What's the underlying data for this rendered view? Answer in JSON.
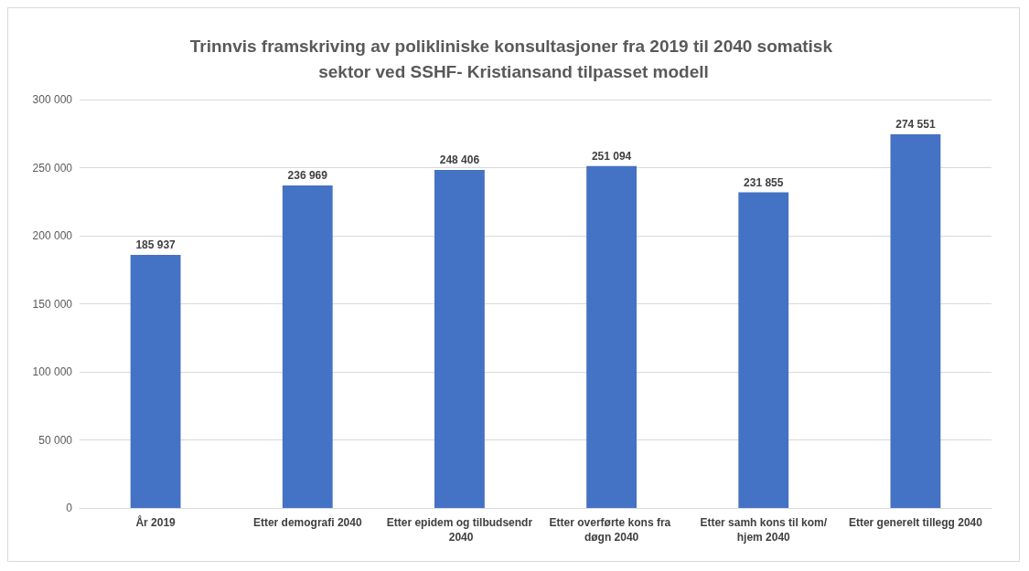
{
  "chart_data": {
    "type": "bar",
    "title": "Trinnvis framskriving av polikliniske konsultasjoner fra 2019 til 2040 somatisk sektor ved SSHF- Kristiansand tilpasset modell",
    "categories": [
      "År 2019",
      "Etter demografi 2040",
      "Etter epidem og tilbudsendr 2040",
      "Etter overførte kons fra døgn 2040",
      "Etter samh kons til kom/hjem 2040",
      "Etter generelt tillegg 2040"
    ],
    "values": [
      185937,
      236969,
      248406,
      251094,
      231855,
      274551
    ],
    "value_labels": [
      "185 937",
      "236 969",
      "248 406",
      "251 094",
      "231 855",
      "274 551"
    ],
    "color": "#4472c4",
    "ylim": [
      0,
      300000
    ],
    "yticks": [
      {
        "value": 0,
        "label": "0"
      },
      {
        "value": 50000,
        "label": "50 000"
      },
      {
        "value": 100000,
        "label": "100 000"
      },
      {
        "value": 150000,
        "label": "150 000"
      },
      {
        "value": 200000,
        "label": "200 000"
      },
      {
        "value": 250000,
        "label": "250 000"
      },
      {
        "value": 300000,
        "label": "300 000"
      }
    ],
    "grid": "y"
  }
}
